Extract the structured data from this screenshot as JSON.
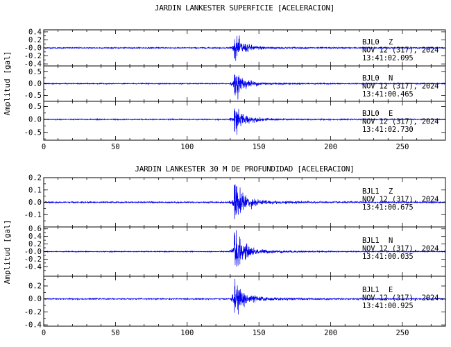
{
  "chart_data": [
    {
      "type": "line",
      "title": "JARDIN LANKESTER SUPERFICIE [ACELERACION]",
      "ylabel": "Amplitud [gal]",
      "xlim": [
        0,
        280
      ],
      "x_ticks": [
        0,
        50,
        100,
        150,
        200,
        250
      ],
      "color": "#0000ee",
      "panels": [
        {
          "station": "BJL0",
          "component": "Z",
          "date": "NOV 12 (317), 2024",
          "time": "13:41:02.095",
          "ylim": [
            -0.45,
            0.45
          ],
          "y_ticks": [
            -0.4,
            -0.2,
            0.0,
            0.2,
            0.4
          ],
          "y_tick_labels": [
            "-0.4",
            "-0.2",
            "-0.0",
            "0.2",
            "0.4"
          ],
          "event_x": 133,
          "peak": 0.3,
          "noise": 0.015
        },
        {
          "station": "BJL0",
          "component": "N",
          "date": "NOV 12 (317), 2024",
          "time": "13:41:00.465",
          "ylim": [
            -0.75,
            0.75
          ],
          "y_ticks": [
            -0.5,
            0.0,
            0.5
          ],
          "y_tick_labels": [
            "-0.5",
            "0.0",
            "0.5"
          ],
          "event_x": 133,
          "peak": 0.55,
          "noise": 0.02
        },
        {
          "station": "BJL0",
          "component": "E",
          "date": "NOV 12 (317), 2024",
          "time": "13:41:02.730",
          "ylim": [
            -0.8,
            0.7
          ],
          "y_ticks": [
            -0.5,
            0.0,
            0.5
          ],
          "y_tick_labels": [
            "-0.5",
            "0.0",
            "0.5"
          ],
          "event_x": 133,
          "peak": 0.5,
          "noise": 0.02
        }
      ]
    },
    {
      "type": "line",
      "title": "JARDIN LANKESTER 30 M DE PROFUNDIDAD [ACELERACION]",
      "ylabel": "Amplitud [gal]",
      "xlim": [
        0,
        280
      ],
      "x_ticks": [
        0,
        50,
        100,
        150,
        200,
        250
      ],
      "color": "#0000ee",
      "panels": [
        {
          "station": "BJL1",
          "component": "Z",
          "date": "NOV 12 (317), 2024",
          "time": "13:41:00.675",
          "ylim": [
            -0.2,
            0.2
          ],
          "y_ticks": [
            -0.1,
            0.0,
            0.1,
            0.2
          ],
          "y_tick_labels": [
            "-0.1",
            "0.0",
            "0.1",
            "0.2"
          ],
          "event_x": 133,
          "peak": 0.17,
          "noise": 0.006
        },
        {
          "station": "BJL1",
          "component": "N",
          "date": "NOV 12 (317), 2024",
          "time": "13:41:00.035",
          "ylim": [
            -0.65,
            0.65
          ],
          "y_ticks": [
            -0.4,
            -0.2,
            0.0,
            0.2,
            0.4,
            0.6
          ],
          "y_tick_labels": [
            "-0.4",
            "-0.2",
            "-0.0",
            "0.2",
            "0.4",
            "0.6"
          ],
          "event_x": 133,
          "peak": 0.55,
          "noise": 0.012
        },
        {
          "station": "BJL1",
          "component": "E",
          "date": "NOV 12 (317), 2024",
          "time": "13:41:00.925",
          "ylim": [
            -0.42,
            0.35
          ],
          "y_ticks": [
            -0.4,
            -0.2,
            0.0,
            0.2
          ],
          "y_tick_labels": [
            "-0.4",
            "-0.2",
            "0.0",
            "0.2"
          ],
          "event_x": 133,
          "peak": 0.28,
          "noise": 0.01
        }
      ]
    }
  ]
}
